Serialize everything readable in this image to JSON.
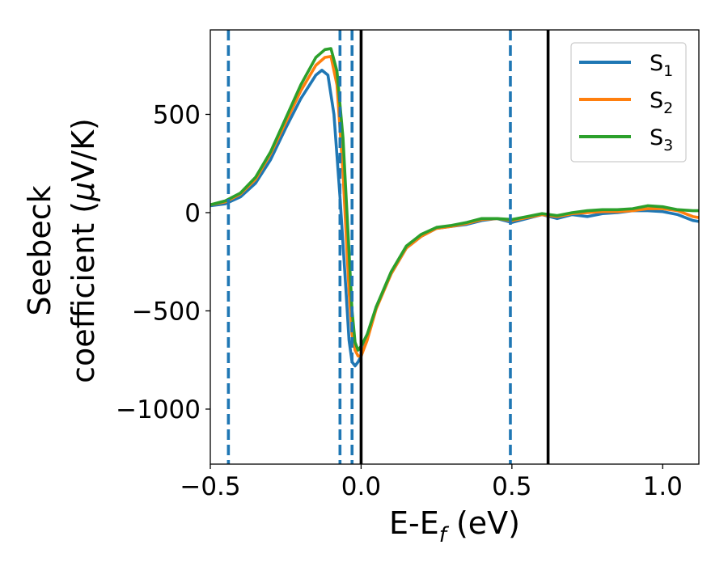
{
  "chart_data": {
    "type": "line",
    "title": "",
    "xlabel": {
      "main": "E-E",
      "sub": "f",
      "rest": " (eV)"
    },
    "ylabel": {
      "line1": "Seebeck",
      "line2_pre": "coefficient  (",
      "line2_mu": "μ",
      "line2_post": "V/K)"
    },
    "xlim": [
      -0.5,
      1.12
    ],
    "ylim": [
      -1280,
      930
    ],
    "xticks": [
      -0.5,
      0.0,
      0.5,
      1.0
    ],
    "xtick_labels": [
      "−0.5",
      "0.0",
      "0.5",
      "1.0"
    ],
    "yticks": [
      500,
      0,
      -500,
      -1000
    ],
    "ytick_labels": [
      "500",
      "0",
      "−500",
      "−1000"
    ],
    "grid": false,
    "legend_position": "top-right",
    "vlines_dashed": [
      -0.44,
      -0.07,
      -0.03,
      0.495
    ],
    "vlines_solid": [
      0.0,
      0.62
    ],
    "vline_dashed_color": "#1f77b4",
    "vline_solid_color": "#000000",
    "series": [
      {
        "name": "S",
        "sub": "1",
        "color": "#1f77b4",
        "x": [
          -0.5,
          -0.45,
          -0.4,
          -0.35,
          -0.3,
          -0.25,
          -0.2,
          -0.15,
          -0.13,
          -0.11,
          -0.09,
          -0.07,
          -0.05,
          -0.04,
          -0.03,
          -0.02,
          -0.01,
          0.0,
          0.02,
          0.05,
          0.1,
          0.15,
          0.2,
          0.25,
          0.3,
          0.35,
          0.4,
          0.45,
          0.5,
          0.55,
          0.6,
          0.65,
          0.7,
          0.75,
          0.8,
          0.85,
          0.9,
          0.95,
          1.0,
          1.05,
          1.1,
          1.12
        ],
        "y": [
          35,
          45,
          80,
          150,
          270,
          430,
          580,
          700,
          725,
          700,
          500,
          80,
          -400,
          -650,
          -760,
          -780,
          -760,
          -730,
          -640,
          -480,
          -310,
          -180,
          -120,
          -80,
          -70,
          -60,
          -40,
          -30,
          -50,
          -30,
          -10,
          -30,
          -10,
          -20,
          -5,
          0,
          10,
          10,
          5,
          -10,
          -40,
          -45
        ]
      },
      {
        "name": "S",
        "sub": "2",
        "color": "#ff7f0e",
        "x": [
          -0.5,
          -0.45,
          -0.4,
          -0.35,
          -0.3,
          -0.25,
          -0.2,
          -0.15,
          -0.12,
          -0.1,
          -0.08,
          -0.06,
          -0.04,
          -0.03,
          -0.02,
          -0.01,
          0.0,
          0.02,
          0.05,
          0.1,
          0.15,
          0.2,
          0.25,
          0.3,
          0.35,
          0.4,
          0.45,
          0.5,
          0.55,
          0.6,
          0.65,
          0.7,
          0.75,
          0.8,
          0.85,
          0.9,
          0.95,
          1.0,
          1.05,
          1.1,
          1.12
        ],
        "y": [
          40,
          55,
          95,
          170,
          300,
          460,
          620,
          750,
          790,
          795,
          650,
          200,
          -400,
          -620,
          -700,
          -730,
          -730,
          -650,
          -490,
          -310,
          -180,
          -120,
          -80,
          -70,
          -55,
          -35,
          -30,
          -40,
          -25,
          -10,
          -20,
          -5,
          0,
          5,
          5,
          10,
          20,
          20,
          10,
          -20,
          -25
        ]
      },
      {
        "name": "S",
        "sub": "3",
        "color": "#2ca02c",
        "x": [
          -0.5,
          -0.45,
          -0.4,
          -0.35,
          -0.3,
          -0.25,
          -0.2,
          -0.15,
          -0.12,
          -0.1,
          -0.08,
          -0.06,
          -0.04,
          -0.03,
          -0.02,
          -0.01,
          0.0,
          0.02,
          0.05,
          0.1,
          0.15,
          0.2,
          0.25,
          0.3,
          0.35,
          0.4,
          0.45,
          0.5,
          0.55,
          0.6,
          0.65,
          0.7,
          0.75,
          0.8,
          0.85,
          0.9,
          0.95,
          1.0,
          1.05,
          1.1,
          1.12
        ],
        "y": [
          40,
          60,
          100,
          180,
          310,
          480,
          650,
          790,
          830,
          835,
          720,
          380,
          -200,
          -500,
          -660,
          -700,
          -680,
          -620,
          -480,
          -300,
          -170,
          -110,
          -75,
          -65,
          -50,
          -30,
          -30,
          -35,
          -20,
          -5,
          -15,
          0,
          10,
          15,
          15,
          20,
          35,
          30,
          15,
          10,
          10
        ]
      }
    ]
  }
}
